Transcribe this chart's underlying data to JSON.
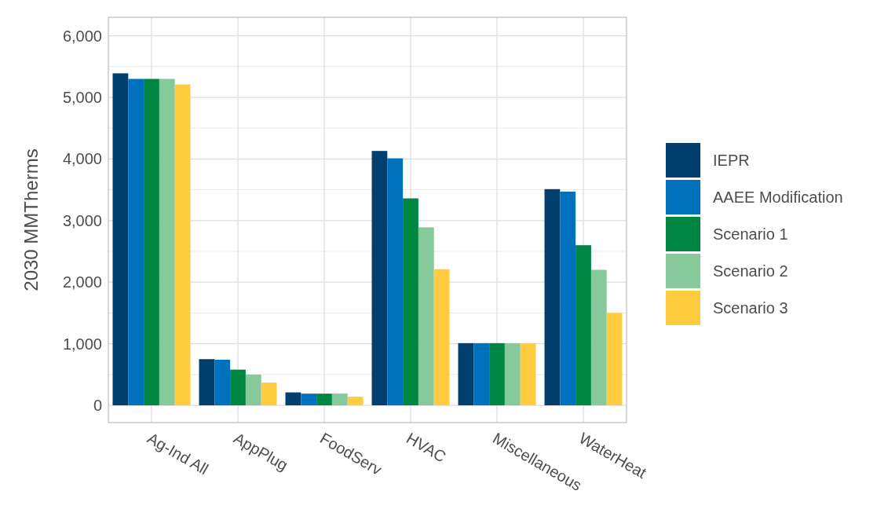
{
  "chart_data": {
    "type": "bar",
    "ylabel": "2030 MMTherms",
    "categories": [
      "Ag-Ind All",
      "AppPlug",
      "FoodServ",
      "HVAC",
      "Miscellaneous",
      "WaterHeat"
    ],
    "series": [
      {
        "name": "IEPR",
        "color": "#003f6e",
        "values": [
          5390,
          750,
          210,
          4130,
          1010,
          3510
        ]
      },
      {
        "name": "AAEE Modification",
        "color": "#0071bc",
        "values": [
          5300,
          740,
          190,
          4010,
          1010,
          3470
        ]
      },
      {
        "name": "Scenario 1",
        "color": "#008542",
        "values": [
          5300,
          580,
          190,
          3360,
          1010,
          2600
        ]
      },
      {
        "name": "Scenario 2",
        "color": "#86c99a",
        "values": [
          5300,
          500,
          190,
          2890,
          1010,
          2200
        ]
      },
      {
        "name": "Scenario 3",
        "color": "#ffcb3f",
        "values": [
          5210,
          370,
          140,
          2210,
          1010,
          1500
        ]
      }
    ],
    "ylim": [
      -280,
      6300
    ],
    "yticks": [
      0,
      {
        "value": 1000,
        "label": "1,000"
      },
      {
        "value": 2000,
        "label": "2,000"
      },
      {
        "value": 3000,
        "label": "3,000"
      },
      {
        "value": 4000,
        "label": "4,000"
      },
      {
        "value": 5000,
        "label": "5,000"
      },
      {
        "value": 6000,
        "label": "6,000"
      }
    ],
    "grid": true,
    "legend": "right"
  }
}
